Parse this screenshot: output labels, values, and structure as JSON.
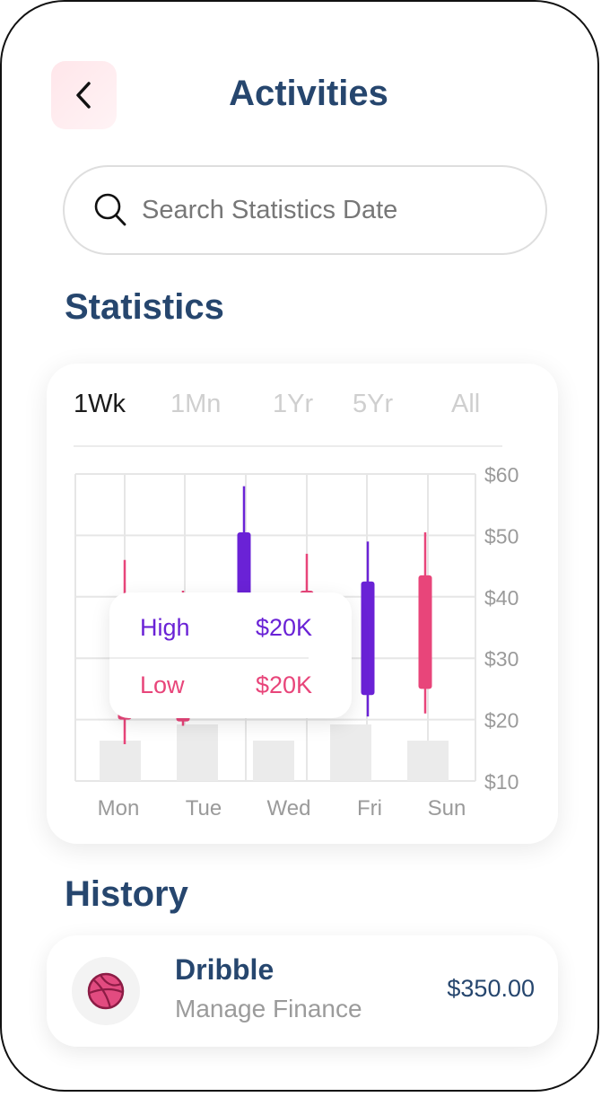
{
  "header": {
    "title": "Activities",
    "back_icon": "chevron-left-icon"
  },
  "search": {
    "placeholder": "Search Statistics Date",
    "icon": "search-icon"
  },
  "statistics": {
    "heading": "Statistics",
    "tabs": [
      {
        "label": "1Wk",
        "active": true
      },
      {
        "label": "1Mn",
        "active": false
      },
      {
        "label": "1Yr",
        "active": false
      },
      {
        "label": "5Yr",
        "active": false
      },
      {
        "label": "All",
        "active": false
      }
    ],
    "tooltip": {
      "high_label": "High",
      "high_value": "$20K",
      "low_label": "Low",
      "low_value": "$20K"
    }
  },
  "chart_data": {
    "type": "candlestick",
    "y_ticks": [
      "$60",
      "$50",
      "$40",
      "$30",
      "$20",
      "$10"
    ],
    "ylim": [
      10,
      60
    ],
    "x_labels": [
      "Mon",
      "Tue",
      "Wed",
      "Fri",
      "Sun"
    ],
    "candles": [
      {
        "pos": 1,
        "color": "#e8457a",
        "high": 46,
        "low": 16,
        "body_top": 28,
        "body_bottom": 20
      },
      {
        "pos": 2,
        "color": "#e8457a",
        "high": 41,
        "low": 19,
        "body_top": 30,
        "body_bottom": 19.7
      },
      {
        "pos": 3,
        "color": "#6a22d6",
        "high": 58,
        "low": 22,
        "body_top": 50.5,
        "body_bottom": 38
      },
      {
        "pos": 4,
        "color": "#e8457a",
        "high": 47,
        "low": 22,
        "body_top": 41,
        "body_bottom": 30
      },
      {
        "pos": 5,
        "color": "#6a22d6",
        "high": 49,
        "low": 20.5,
        "body_top": 42.5,
        "body_bottom": 24
      },
      {
        "pos": 6,
        "color": "#e8457a",
        "high": 50.5,
        "low": 21,
        "body_top": 43.5,
        "body_bottom": 25
      }
    ],
    "volume_bars": [
      {
        "label_index": 0,
        "value": 0.45
      },
      {
        "label_index": 1,
        "value": 0.63
      },
      {
        "label_index": 2,
        "value": 0.45
      },
      {
        "label_index": 3,
        "value": 0.63
      },
      {
        "label_index": 4,
        "value": 0.45
      }
    ],
    "grid": true,
    "colors": {
      "up": "#6a22d6",
      "down": "#e8457a",
      "grid": "#e6e6e6",
      "volume": "#ebebeb",
      "label": "#9a9a9a"
    }
  },
  "history": {
    "heading": "History",
    "items": [
      {
        "name": "Dribble",
        "subtitle": "Manage Finance",
        "amount": "$350.00",
        "icon": "dribbble-icon"
      }
    ]
  }
}
